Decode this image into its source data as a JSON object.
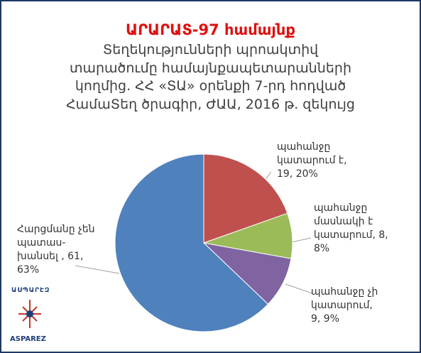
{
  "chart_data": {
    "type": "pie",
    "title": "ԱՐԱՐԱՏ-97 համայնք",
    "subtitle": [
      "Տեղեկությունների պրոակտիվ",
      "տարածումը համայնքապետարանների",
      "կողմից. ՀՀ «ՏԱ» օրենքի 7-րդ հոդված",
      "ՀամաՏեղ ծրագիր, ԺԱԱ, 2016 թ. զեկույց"
    ],
    "categories": [
      "պահանջը կատարում է,",
      "պահանջը մասնակի է կատարում,",
      "պահանջը չի կատարում,",
      "Հարցմանը չեն պատաս-խանսել ,"
    ],
    "values": [
      19,
      8,
      9,
      61
    ],
    "value_labels": [
      "19, 20%",
      "8, 8%",
      "9, 9%",
      "61, 63%"
    ],
    "colors": [
      "#c0504d",
      "#9bbb59",
      "#8064a2",
      "#4f81bd"
    ],
    "logo": {
      "top": "ԱՍՊԱՐԷԶ",
      "bottom": "ASPAREZ"
    }
  }
}
